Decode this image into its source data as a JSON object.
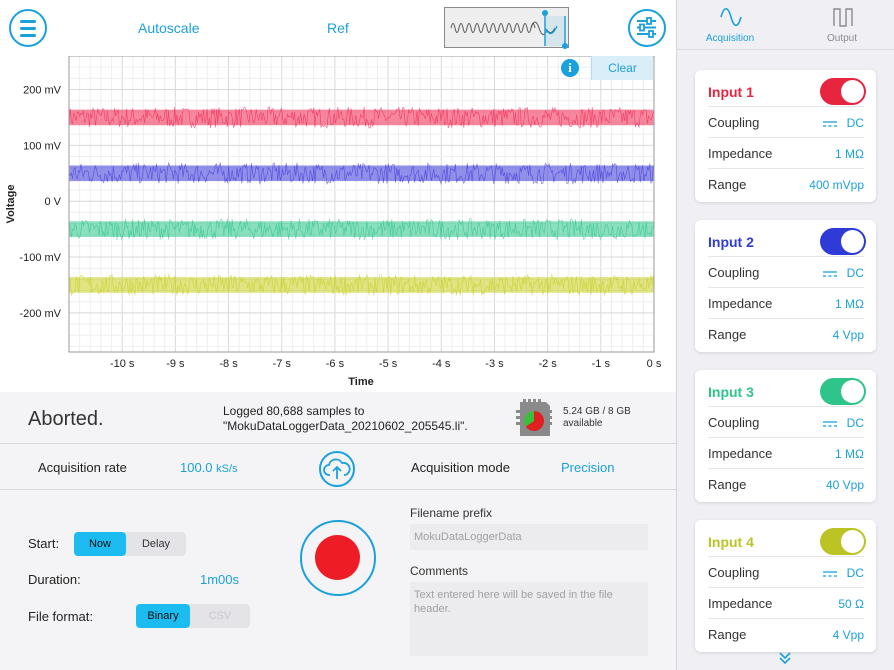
{
  "toolbar": {
    "menu_icon": "hamburger-menu-icon",
    "autoscale_label": "Autoscale",
    "ref_label": "Ref",
    "settings_icon": "sliders-icon"
  },
  "chart": {
    "info_icon": "i",
    "clear_label": "Clear"
  },
  "chart_data": {
    "type": "line",
    "xlabel": "Time",
    "ylabel": "Voltage",
    "x_ticks": [
      "-10 s",
      "-9 s",
      "-8 s",
      "-7 s",
      "-6 s",
      "-5 s",
      "-4 s",
      "-3 s",
      "-2 s",
      "-1 s",
      "0 s"
    ],
    "y_ticks": [
      "200 mV",
      "100 mV",
      "0 V",
      "-100 mV",
      "-200 mV"
    ],
    "xlim": [
      -11,
      0
    ],
    "ylim": [
      -270,
      260
    ],
    "grid": true,
    "series": [
      {
        "color": "#f0244f",
        "mean": 150,
        "noise": 14
      },
      {
        "color": "#3b35d8",
        "mean": 50,
        "noise": 14
      },
      {
        "color": "#29c489",
        "mean": -50,
        "noise": 14
      },
      {
        "color": "#c6ce1e",
        "mean": -150,
        "noise": 14
      }
    ]
  },
  "status": {
    "state": "Aborted.",
    "log_line1": "Logged 80,688 samples to",
    "log_line2": "\"MokuDataLoggerData_20210602_205545.li\".",
    "storage_line1": "5.24 GB / 8 GB",
    "storage_line2": "available",
    "storage_used_fraction": 0.655
  },
  "acquisition": {
    "rate_label": "Acquisition rate",
    "rate_value": "100.0",
    "rate_unit": "kS/s",
    "mode_label": "Acquisition mode",
    "mode_value": "Precision",
    "upload_icon": "cloud-upload-icon"
  },
  "settings": {
    "start_label": "Start:",
    "start_options": [
      "Now",
      "Delay"
    ],
    "start_selected": "Now",
    "duration_label": "Duration:",
    "duration_value": "1m00s",
    "file_format_label": "File format:",
    "format_options": [
      "Binary",
      "CSV"
    ],
    "format_selected": "Binary",
    "record_icon": "record-icon",
    "filename_label": "Filename prefix",
    "filename_placeholder": "MokuDataLoggerData",
    "comments_label": "Comments",
    "comments_placeholder": "Text entered here will be saved in the file header."
  },
  "right_panel": {
    "tabs": [
      {
        "label": "Acquisition",
        "icon": "sine-wave-icon",
        "active": true
      },
      {
        "label": "Output",
        "icon": "pulse-wave-icon",
        "active": false
      }
    ],
    "inputs": [
      {
        "title": "Input 1",
        "color": "#e8253f",
        "toggle_on": true,
        "coupling_label": "Coupling",
        "coupling": "DC",
        "impedance_label": "Impedance",
        "impedance": "1 MΩ",
        "range_label": "Range",
        "range": "400 mVpp"
      },
      {
        "title": "Input 2",
        "color": "#2f3bd6",
        "toggle_on": true,
        "coupling_label": "Coupling",
        "coupling": "DC",
        "impedance_label": "Impedance",
        "impedance": "1 MΩ",
        "range_label": "Range",
        "range": "4 Vpp"
      },
      {
        "title": "Input 3",
        "color": "#2ec48a",
        "toggle_on": true,
        "coupling_label": "Coupling",
        "coupling": "DC",
        "impedance_label": "Impedance",
        "impedance": "1 MΩ",
        "range_label": "Range",
        "range": "40 Vpp"
      },
      {
        "title": "Input 4",
        "color": "#bcc425",
        "toggle_on": true,
        "coupling_label": "Coupling",
        "coupling": "DC",
        "impedance_label": "Impedance",
        "impedance": "50 Ω",
        "range_label": "Range",
        "range": "4 Vpp"
      }
    ],
    "more_icon": "double-chevron-down-icon"
  }
}
